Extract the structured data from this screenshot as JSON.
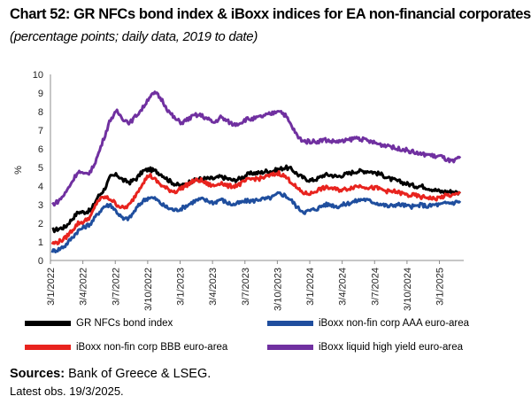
{
  "header": {
    "title": "Chart 52: GR NFCs bond index & iBoxx indices for EA non-financial corporates",
    "subtitle": "(percentage points; daily data, 2019 to date)"
  },
  "footer": {
    "sources_label": "Sources:",
    "sources_text": " Bank of Greece & LSEG.",
    "latest_obs": "Latest obs. 19/3/2025."
  },
  "chart_data": {
    "type": "line",
    "ylabel": "%",
    "ylim": [
      0,
      10
    ],
    "yticks": [
      "0",
      "1",
      "2",
      "3",
      "4",
      "5",
      "6",
      "7",
      "8",
      "9",
      "10"
    ],
    "xticks": [
      "3/1/2022",
      "3/4/2022",
      "3/7/2022",
      "3/10/2022",
      "3/1/2023",
      "3/4/2023",
      "3/7/2023",
      "3/10/2023",
      "3/1/2024",
      "3/4/2024",
      "3/7/2024",
      "3/10/2024",
      "3/1/2025"
    ],
    "grid": false,
    "legend_position": "bottom",
    "series": [
      {
        "name": "GR NFCs bond index",
        "color": "#000000",
        "values": [
          1.6,
          1.7,
          1.8,
          2.2,
          2.6,
          2.6,
          2.7,
          3.4,
          3.8,
          4.5,
          4.6,
          4.3,
          4.2,
          4.4,
          4.8,
          4.9,
          4.8,
          4.6,
          4.3,
          4.1,
          4.0,
          4.2,
          4.3,
          4.4,
          4.4,
          4.4,
          4.5,
          4.4,
          4.3,
          4.4,
          4.6,
          4.7,
          4.7,
          4.8,
          4.8,
          4.9,
          5.0,
          4.9,
          4.6,
          4.4,
          4.3,
          4.4,
          4.6,
          4.6,
          4.5,
          4.6,
          4.7,
          4.8,
          4.8,
          4.8,
          4.7,
          4.6,
          4.4,
          4.3,
          4.2,
          4.1,
          4.0,
          4.0,
          3.9,
          3.8,
          3.7,
          3.7,
          3.7,
          3.6
        ]
      },
      {
        "name": "iBoxx non-fin corp AAA euro-area",
        "color": "#1f4e9e",
        "values": [
          0.5,
          0.6,
          0.8,
          1.2,
          1.6,
          1.8,
          2.0,
          2.5,
          2.9,
          3.0,
          2.6,
          2.2,
          2.3,
          2.8,
          3.2,
          3.4,
          3.3,
          3.0,
          2.8,
          2.7,
          2.8,
          3.0,
          3.2,
          3.3,
          3.2,
          3.1,
          3.3,
          3.1,
          3.0,
          3.1,
          3.2,
          3.2,
          3.3,
          3.3,
          3.4,
          3.6,
          3.5,
          3.2,
          2.8,
          2.6,
          2.7,
          2.8,
          3.0,
          3.0,
          2.9,
          3.0,
          3.1,
          3.2,
          3.3,
          3.2,
          3.1,
          3.0,
          2.9,
          3.0,
          3.0,
          2.9,
          2.9,
          3.0,
          2.9,
          3.0,
          3.0,
          3.1,
          3.1,
          3.2
        ]
      },
      {
        "name": "iBoxx non-fin corp BBB euro-area",
        "color": "#e8231e",
        "values": [
          0.9,
          1.0,
          1.2,
          1.6,
          2.0,
          2.1,
          2.4,
          3.2,
          3.4,
          3.3,
          3.0,
          2.8,
          3.0,
          3.6,
          4.2,
          4.6,
          4.3,
          4.0,
          3.8,
          3.7,
          3.9,
          4.1,
          4.3,
          4.3,
          4.1,
          4.0,
          4.2,
          4.0,
          4.0,
          4.1,
          4.3,
          4.4,
          4.4,
          4.5,
          4.6,
          4.7,
          4.5,
          4.2,
          3.8,
          3.6,
          3.6,
          3.8,
          3.9,
          3.9,
          3.8,
          3.8,
          3.9,
          4.0,
          4.0,
          3.9,
          3.9,
          3.8,
          3.7,
          3.7,
          3.6,
          3.5,
          3.5,
          3.4,
          3.4,
          3.3,
          3.4,
          3.5,
          3.5,
          3.6
        ]
      },
      {
        "name": "iBoxx liquid high yield euro-area",
        "color": "#7030a0",
        "values": [
          3.0,
          3.2,
          3.6,
          4.2,
          4.8,
          4.6,
          4.8,
          5.6,
          6.6,
          7.6,
          8.0,
          7.6,
          7.4,
          7.8,
          8.2,
          8.8,
          9.0,
          8.6,
          8.0,
          7.6,
          7.4,
          7.6,
          7.8,
          7.8,
          7.6,
          7.4,
          7.7,
          7.5,
          7.3,
          7.4,
          7.6,
          7.6,
          7.7,
          7.8,
          7.9,
          8.1,
          7.8,
          7.2,
          6.6,
          6.4,
          6.4,
          6.4,
          6.5,
          6.4,
          6.4,
          6.4,
          6.5,
          6.6,
          6.5,
          6.4,
          6.3,
          6.2,
          6.2,
          6.0,
          6.0,
          5.9,
          5.8,
          5.7,
          5.7,
          5.6,
          5.6,
          5.4,
          5.3,
          5.6
        ]
      }
    ]
  }
}
